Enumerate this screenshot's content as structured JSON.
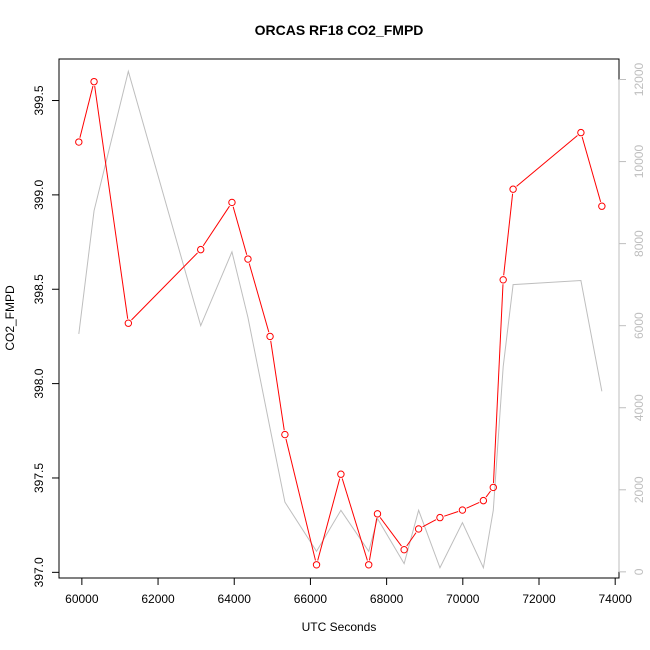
{
  "chart_data": {
    "type": "line",
    "title": "ORCAS RF18 CO2_FMPD",
    "xlabel": "UTC Seconds",
    "ylabel": "CO2_FMPD",
    "xlim": [
      59400,
      74100
    ],
    "ylim": [
      396.97,
      399.72
    ],
    "y2lim": [
      -150,
      12500
    ],
    "x_ticks": [
      60000,
      62000,
      64000,
      66000,
      68000,
      70000,
      72000,
      74000
    ],
    "y_ticks": [
      397.0,
      397.5,
      398.0,
      398.5,
      399.0,
      399.5
    ],
    "y_tick_labels": [
      "397.0",
      "397.5",
      "398.0",
      "398.5",
      "399.0",
      "399.5"
    ],
    "y2_ticks": [
      0,
      2000,
      4000,
      6000,
      8000,
      10000,
      12000
    ],
    "grid": false,
    "series": [
      {
        "axis": "left",
        "color": "#ff0000",
        "marker": "circle-open",
        "points": [
          [
            59920,
            399.28
          ],
          [
            60320,
            399.6
          ],
          [
            61220,
            398.32
          ],
          [
            63120,
            398.71
          ],
          [
            63940,
            398.96
          ],
          [
            64360,
            398.66
          ],
          [
            64940,
            398.25
          ],
          [
            65330,
            397.73
          ],
          [
            66160,
            397.04
          ],
          [
            66800,
            397.52
          ],
          [
            67530,
            397.04
          ],
          [
            67760,
            397.31
          ],
          [
            68460,
            397.12
          ],
          [
            68840,
            397.23
          ],
          [
            69400,
            397.29
          ],
          [
            69990,
            397.33
          ],
          [
            70540,
            397.38
          ],
          [
            70800,
            397.45
          ],
          [
            71060,
            398.55
          ],
          [
            71320,
            399.03
          ],
          [
            73100,
            399.33
          ],
          [
            73650,
            398.94
          ]
        ]
      },
      {
        "axis": "right",
        "color": "#bebebe",
        "marker": "none",
        "points": [
          [
            59920,
            5800
          ],
          [
            60320,
            8800
          ],
          [
            61220,
            12200
          ],
          [
            63120,
            6000
          ],
          [
            63940,
            7800
          ],
          [
            64360,
            6200
          ],
          [
            64940,
            3500
          ],
          [
            65330,
            1700
          ],
          [
            66160,
            500
          ],
          [
            66800,
            1500
          ],
          [
            67530,
            500
          ],
          [
            67760,
            1300
          ],
          [
            68460,
            200
          ],
          [
            68840,
            1500
          ],
          [
            69400,
            100
          ],
          [
            69990,
            1200
          ],
          [
            70540,
            100
          ],
          [
            70800,
            1500
          ],
          [
            71060,
            5000
          ],
          [
            71320,
            7000
          ],
          [
            73100,
            7100
          ],
          [
            73650,
            4400
          ]
        ]
      }
    ]
  }
}
